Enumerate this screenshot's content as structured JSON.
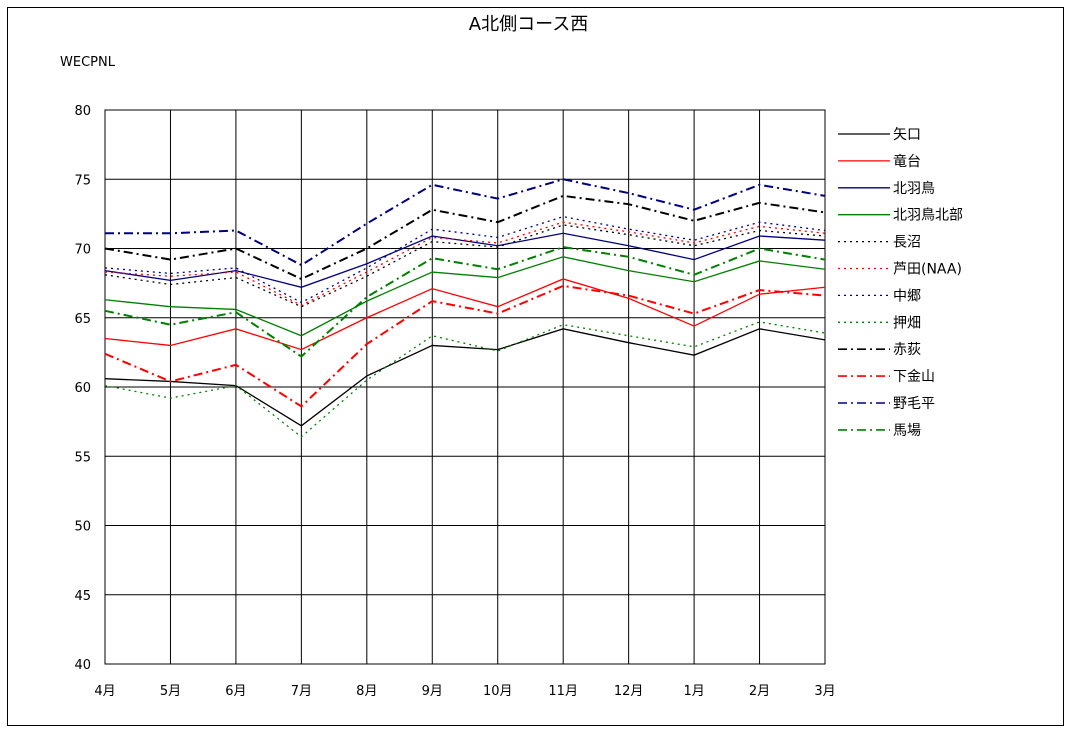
{
  "chart_data": {
    "type": "line",
    "title": "A北側コース西",
    "ylabel": "WECPNL",
    "xlabel": "",
    "ylim": [
      40,
      80
    ],
    "yticks": [
      40,
      45,
      50,
      55,
      60,
      65,
      70,
      75,
      80
    ],
    "grid": true,
    "legend_position": "right",
    "categories": [
      "4月",
      "5月",
      "6月",
      "7月",
      "8月",
      "9月",
      "10月",
      "11月",
      "12月",
      "1月",
      "2月",
      "3月"
    ],
    "series": [
      {
        "name": "矢口",
        "color": "#000000",
        "style": "solid",
        "values": [
          60.6,
          60.4,
          60.1,
          57.2,
          60.8,
          63.0,
          62.7,
          64.2,
          63.2,
          62.3,
          64.2,
          63.4
        ]
      },
      {
        "name": "竜台",
        "color": "#ff0000",
        "style": "solid",
        "values": [
          63.5,
          63.0,
          64.2,
          62.7,
          65.0,
          67.1,
          65.8,
          67.8,
          66.4,
          64.4,
          66.7,
          67.2
        ]
      },
      {
        "name": "北羽鳥",
        "color": "#000080",
        "style": "solid",
        "values": [
          68.4,
          67.7,
          68.4,
          67.2,
          68.9,
          70.9,
          70.2,
          71.1,
          70.2,
          69.2,
          70.9,
          70.6
        ]
      },
      {
        "name": "北羽鳥北部",
        "color": "#008000",
        "style": "solid",
        "values": [
          66.3,
          65.8,
          65.6,
          63.7,
          66.2,
          68.3,
          67.9,
          69.4,
          68.4,
          67.6,
          69.1,
          68.5
        ]
      },
      {
        "name": "長沼",
        "color": "#000000",
        "style": "dotted",
        "values": [
          68.1,
          67.4,
          67.9,
          65.8,
          68.0,
          70.5,
          70.1,
          71.7,
          71.0,
          70.2,
          71.3,
          70.9
        ]
      },
      {
        "name": "芦田(NAA)",
        "color": "#ff0000",
        "style": "dotted",
        "values": [
          68.3,
          68.0,
          68.3,
          65.9,
          68.3,
          70.8,
          70.4,
          71.9,
          71.2,
          70.4,
          71.6,
          71.1
        ]
      },
      {
        "name": "中郷",
        "color": "#000080",
        "style": "dotted",
        "values": [
          68.6,
          68.2,
          68.6,
          66.1,
          68.6,
          71.4,
          70.8,
          72.3,
          71.4,
          70.6,
          71.9,
          71.3
        ]
      },
      {
        "name": "押畑",
        "color": "#008000",
        "style": "dotted",
        "values": [
          60.1,
          59.2,
          60.1,
          56.4,
          60.5,
          63.7,
          62.6,
          64.5,
          63.7,
          62.9,
          64.7,
          63.9
        ]
      },
      {
        "name": "赤荻",
        "color": "#000000",
        "style": "dashdot",
        "values": [
          70.0,
          69.2,
          70.0,
          67.8,
          70.0,
          72.8,
          71.9,
          73.8,
          73.2,
          72.0,
          73.3,
          72.6
        ]
      },
      {
        "name": "下金山",
        "color": "#ff0000",
        "style": "dashdot",
        "values": [
          62.4,
          60.4,
          61.6,
          58.6,
          63.1,
          66.2,
          65.3,
          67.3,
          66.6,
          65.3,
          67.0,
          66.6
        ]
      },
      {
        "name": "野毛平",
        "color": "#000080",
        "style": "dashdot",
        "values": [
          71.1,
          71.1,
          71.3,
          68.8,
          71.8,
          74.6,
          73.6,
          75.0,
          74.0,
          72.8,
          74.6,
          73.8
        ]
      },
      {
        "name": "馬場",
        "color": "#008000",
        "style": "dashdot",
        "values": [
          65.5,
          64.5,
          65.4,
          62.2,
          66.5,
          69.3,
          68.5,
          70.1,
          69.4,
          68.1,
          70.0,
          69.2
        ]
      }
    ]
  }
}
